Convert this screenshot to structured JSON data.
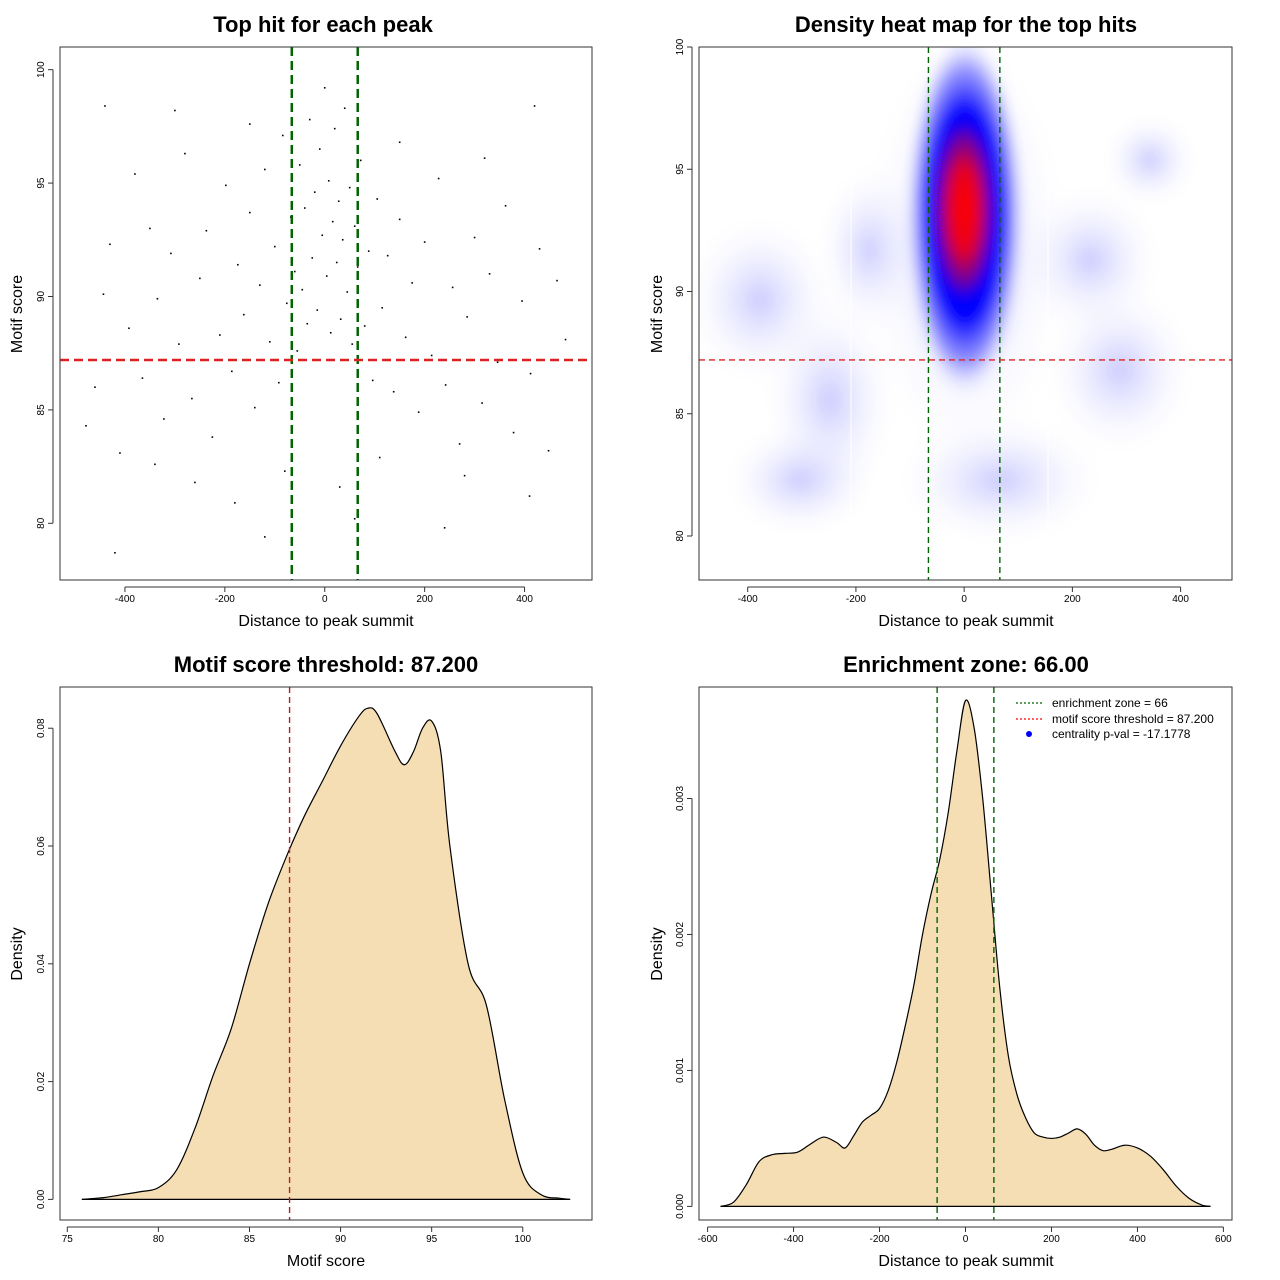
{
  "chart_data": [
    {
      "type": "scatter",
      "title": "Top hit for each peak",
      "xlabel": "Distance to peak summit",
      "ylabel": "Motif score",
      "xlim": [
        -530,
        535
      ],
      "ylim": [
        77.5,
        101.0
      ],
      "xticks": [
        -400,
        -200,
        0,
        200,
        400
      ],
      "yticks": [
        80,
        85,
        90,
        95,
        100
      ],
      "vlines": [
        -66,
        66
      ],
      "hline": 87.2,
      "colors": {
        "points": "#000000",
        "vline": "#006400",
        "hline": "#dd2222"
      },
      "points": [
        [
          -478,
          84.3
        ],
        [
          -460,
          86.0
        ],
        [
          -443,
          90.1
        ],
        [
          -430,
          92.3
        ],
        [
          -410,
          83.1
        ],
        [
          -392,
          88.6
        ],
        [
          -380,
          95.4
        ],
        [
          -365,
          86.4
        ],
        [
          -350,
          93.0
        ],
        [
          -335,
          89.9
        ],
        [
          -322,
          84.6
        ],
        [
          -308,
          91.9
        ],
        [
          -292,
          87.9
        ],
        [
          -280,
          96.3
        ],
        [
          -266,
          85.5
        ],
        [
          -250,
          90.8
        ],
        [
          -237,
          92.9
        ],
        [
          -225,
          83.8
        ],
        [
          -210,
          88.3
        ],
        [
          -198,
          94.9
        ],
        [
          -186,
          86.7
        ],
        [
          -174,
          91.4
        ],
        [
          -162,
          89.2
        ],
        [
          -150,
          93.7
        ],
        [
          -140,
          85.1
        ],
        [
          -130,
          90.5
        ],
        [
          -120,
          95.6
        ],
        [
          -110,
          88.0
        ],
        [
          -100,
          92.2
        ],
        [
          -92,
          86.2
        ],
        [
          -84,
          97.1
        ],
        [
          -76,
          89.7
        ],
        [
          -68,
          93.5
        ],
        [
          -60,
          91.1
        ],
        [
          -55,
          87.6
        ],
        [
          -50,
          95.8
        ],
        [
          -45,
          90.3
        ],
        [
          -40,
          93.9
        ],
        [
          -35,
          88.8
        ],
        [
          -30,
          97.8
        ],
        [
          -25,
          91.7
        ],
        [
          -20,
          94.6
        ],
        [
          -15,
          89.4
        ],
        [
          -10,
          96.5
        ],
        [
          -5,
          92.7
        ],
        [
          0,
          99.2
        ],
        [
          4,
          90.9
        ],
        [
          8,
          95.1
        ],
        [
          12,
          88.4
        ],
        [
          16,
          93.3
        ],
        [
          20,
          97.4
        ],
        [
          24,
          91.5
        ],
        [
          28,
          94.2
        ],
        [
          32,
          89.0
        ],
        [
          36,
          92.5
        ],
        [
          40,
          98.3
        ],
        [
          45,
          90.2
        ],
        [
          50,
          94.8
        ],
        [
          55,
          87.9
        ],
        [
          60,
          93.1
        ],
        [
          66,
          91.3
        ],
        [
          72,
          96.0
        ],
        [
          80,
          88.7
        ],
        [
          88,
          92.0
        ],
        [
          96,
          86.3
        ],
        [
          105,
          94.3
        ],
        [
          115,
          89.5
        ],
        [
          126,
          91.8
        ],
        [
          138,
          85.8
        ],
        [
          150,
          93.4
        ],
        [
          162,
          88.2
        ],
        [
          175,
          90.6
        ],
        [
          188,
          84.9
        ],
        [
          200,
          92.4
        ],
        [
          214,
          87.4
        ],
        [
          228,
          95.2
        ],
        [
          242,
          86.1
        ],
        [
          256,
          90.4
        ],
        [
          270,
          83.5
        ],
        [
          285,
          89.1
        ],
        [
          300,
          92.6
        ],
        [
          315,
          85.3
        ],
        [
          330,
          91.0
        ],
        [
          346,
          87.1
        ],
        [
          362,
          94.0
        ],
        [
          378,
          84.0
        ],
        [
          395,
          89.8
        ],
        [
          412,
          86.6
        ],
        [
          430,
          92.1
        ],
        [
          448,
          83.2
        ],
        [
          465,
          90.7
        ],
        [
          482,
          88.1
        ],
        [
          -440,
          98.4
        ],
        [
          -300,
          98.2
        ],
        [
          -150,
          97.6
        ],
        [
          150,
          96.8
        ],
        [
          320,
          96.1
        ],
        [
          420,
          98.4
        ],
        [
          -120,
          79.4
        ],
        [
          60,
          80.2
        ],
        [
          240,
          79.8
        ],
        [
          -420,
          78.7
        ],
        [
          -260,
          81.8
        ],
        [
          -180,
          80.9
        ],
        [
          -80,
          82.3
        ],
        [
          30,
          81.6
        ],
        [
          110,
          82.9
        ],
        [
          280,
          82.1
        ],
        [
          410,
          81.2
        ],
        [
          -340,
          82.6
        ]
      ]
    },
    {
      "type": "heatmap",
      "title": "Density heat map for the top hits",
      "xlabel": "Distance to peak summit",
      "ylabel": "Motif score",
      "xlim": [
        -490,
        495
      ],
      "ylim": [
        78.2,
        100.0
      ],
      "xticks": [
        -400,
        -200,
        0,
        200,
        400
      ],
      "yticks": [
        80,
        85,
        90,
        95,
        100
      ],
      "vlines": [
        -66,
        66
      ],
      "hline": 87.2,
      "colors": {
        "low": "#ffffff",
        "mid": "#0000ff",
        "high": "#ff0000",
        "vline": "#006400",
        "hline": "#dd2222"
      }
    },
    {
      "type": "area",
      "title": "Motif score threshold: 87.200",
      "xlabel": "Motif score",
      "ylabel": "Density",
      "xlim": [
        74.6,
        103.8
      ],
      "ylim": [
        -0.0035,
        0.087
      ],
      "xticks": [
        75,
        80,
        85,
        90,
        95,
        100
      ],
      "yticks": [
        0.0,
        0.02,
        0.04,
        0.06,
        0.08
      ],
      "ytick_labels": [
        "0.00",
        "0.02",
        "0.04",
        "0.06",
        "0.08"
      ],
      "vline": 87.2,
      "colors": {
        "fill": "#f5deb3",
        "line": "#000000",
        "vline": "#b22222"
      },
      "x": [
        75.8,
        77.0,
        78.0,
        79.0,
        80.0,
        81.0,
        82.0,
        83.0,
        84.0,
        85.0,
        86.0,
        87.0,
        88.0,
        89.0,
        90.0,
        91.0,
        91.5,
        92.0,
        93.0,
        93.5,
        94.0,
        94.5,
        95.0,
        95.5,
        96.0,
        97.0,
        98.0,
        99.0,
        100.0,
        101.0,
        102.0,
        102.6
      ],
      "y": [
        0.0,
        0.0003,
        0.0008,
        0.0013,
        0.002,
        0.005,
        0.012,
        0.021,
        0.029,
        0.04,
        0.05,
        0.058,
        0.065,
        0.071,
        0.077,
        0.082,
        0.0834,
        0.0825,
        0.076,
        0.0738,
        0.076,
        0.08,
        0.0812,
        0.076,
        0.06,
        0.04,
        0.033,
        0.017,
        0.0045,
        0.0008,
        0.0002,
        0.0
      ]
    },
    {
      "type": "area",
      "title": "Enrichment zone: 66.00",
      "xlabel": "Distance to peak summit",
      "ylabel": "Density",
      "xlim": [
        -620,
        620
      ],
      "ylim": [
        -0.0001,
        0.00382
      ],
      "xticks": [
        -600,
        -400,
        -200,
        0,
        200,
        400,
        600
      ],
      "yticks": [
        0.0,
        0.001,
        0.002,
        0.003
      ],
      "ytick_labels": [
        "0.000",
        "0.001",
        "0.002",
        "0.003"
      ],
      "vlines": [
        -66,
        66
      ],
      "colors": {
        "fill": "#f5deb3",
        "line": "#000000",
        "vline": "#006400",
        "legend_zone": "#006400",
        "legend_threshold": "#ff0000",
        "legend_pval": "#0000ff"
      },
      "legend": [
        "enrichment zone = 66",
        "motif score threshold = 87.200",
        "centrality p-val = -17.1778"
      ],
      "legend_position": "top-right",
      "x": [
        -570,
        -540,
        -510,
        -480,
        -450,
        -420,
        -390,
        -360,
        -330,
        -300,
        -280,
        -260,
        -240,
        -220,
        -200,
        -180,
        -160,
        -140,
        -120,
        -100,
        -80,
        -60,
        -40,
        -20,
        0,
        20,
        40,
        60,
        80,
        100,
        120,
        140,
        160,
        180,
        200,
        220,
        240,
        260,
        280,
        300,
        320,
        340,
        370,
        400,
        430,
        460,
        490,
        520,
        550,
        570
      ],
      "y": [
        0.0,
        3e-05,
        0.00016,
        0.00033,
        0.00038,
        0.00039,
        0.0004,
        0.00046,
        0.00051,
        0.00047,
        0.00043,
        0.00052,
        0.00062,
        0.00067,
        0.00072,
        0.00085,
        0.00106,
        0.00133,
        0.00163,
        0.002,
        0.0023,
        0.00255,
        0.0029,
        0.00335,
        0.00372,
        0.00352,
        0.003,
        0.0023,
        0.0016,
        0.0011,
        0.00082,
        0.00065,
        0.00054,
        0.00051,
        0.0005,
        0.00051,
        0.00054,
        0.00057,
        0.00053,
        0.00045,
        0.00041,
        0.00042,
        0.00045,
        0.00043,
        0.00037,
        0.00027,
        0.00015,
        6e-05,
        1e-05,
        0.0
      ]
    }
  ]
}
